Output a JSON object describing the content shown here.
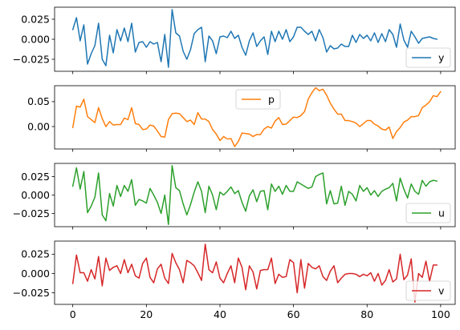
{
  "chart_data": [
    {
      "type": "line",
      "name": "y",
      "color": "#1f77b4",
      "legend_position": "lower-right",
      "ylim": [
        -0.04,
        0.04
      ],
      "yticks": [
        -0.025,
        0.0,
        0.025
      ],
      "ytick_labels": [
        "−0.025",
        "0.000",
        "0.025"
      ],
      "xlim": [
        -4.95,
        103.95
      ],
      "xticks": [
        0,
        20,
        40,
        60,
        80,
        100
      ],
      "xtick_labels": [
        "0",
        "20",
        "40",
        "60",
        "80",
        "100"
      ],
      "show_xtick_labels": false,
      "values": [
        0.012,
        0.027,
        -0.002,
        0.018,
        -0.031,
        -0.018,
        -0.008,
        0.02,
        -0.025,
        -0.033,
        0.005,
        -0.017,
        0.012,
        -0.002,
        0.014,
        -0.003,
        0.02,
        -0.016,
        -0.004,
        -0.003,
        -0.01,
        -0.003,
        -0.006,
        -0.004,
        -0.028,
        0.006,
        -0.035,
        0.037,
        0.008,
        0.004,
        -0.015,
        -0.025,
        -0.013,
        0.007,
        0.012,
        0.015,
        -0.028,
        0.004,
        -0.002,
        -0.018,
        0.003,
        0.004,
        0.002,
        0.01,
        0.001,
        0.005,
        -0.01,
        -0.02,
        -0.002,
        0.008,
        -0.009,
        -0.002,
        0.003,
        -0.019,
        0.01,
        -0.003,
        0.01,
        0.0,
        0.012,
        -0.003,
        0.003,
        0.015,
        0.015,
        0.01,
        0.006,
        0.01,
        -0.002,
        0.012,
        0.002,
        -0.016,
        -0.008,
        -0.012,
        -0.011,
        -0.006,
        -0.009,
        -0.009,
        0.005,
        -0.004,
        0.006,
        0.001,
        0.005,
        -0.002,
        0.008,
        -0.004,
        0.007,
        -0.003,
        0.012,
        0.006,
        -0.01,
        0.019,
        -0.001,
        -0.01,
        0.01,
        0.003,
        -0.005,
        0.001,
        0.002,
        0.003,
        0.001,
        0.0
      ]
    },
    {
      "type": "line",
      "name": "p",
      "color": "#ff7f0e",
      "legend_position": "top-center",
      "ylim": [
        -0.045,
        0.082
      ],
      "yticks": [
        0.0,
        0.05
      ],
      "ytick_labels": [
        "0.00",
        "0.05"
      ],
      "xlim": [
        -4.95,
        103.95
      ],
      "xticks": [
        0,
        20,
        40,
        60,
        80,
        100
      ],
      "xtick_labels": [
        "0",
        "20",
        "40",
        "60",
        "80",
        "100"
      ],
      "show_xtick_labels": false,
      "values": [
        -0.002,
        0.041,
        0.039,
        0.055,
        0.02,
        0.014,
        0.008,
        0.038,
        0.016,
        0.0,
        0.01,
        0.003,
        0.004,
        0.004,
        0.017,
        0.014,
        0.038,
        0.006,
        0.004,
        -0.006,
        -0.005,
        0.003,
        0.001,
        -0.009,
        -0.02,
        -0.021,
        0.014,
        0.026,
        0.027,
        0.026,
        0.018,
        0.01,
        0.013,
        0.004,
        0.028,
        0.015,
        0.015,
        0.01,
        -0.006,
        -0.015,
        -0.028,
        -0.02,
        -0.025,
        -0.024,
        -0.04,
        -0.03,
        -0.013,
        -0.014,
        -0.015,
        -0.02,
        -0.016,
        -0.016,
        -0.005,
        0.0,
        -0.003,
        0.011,
        0.018,
        0.004,
        0.005,
        0.012,
        0.019,
        0.018,
        0.022,
        0.03,
        0.055,
        0.068,
        0.078,
        0.072,
        0.075,
        0.063,
        0.047,
        0.035,
        0.025,
        0.025,
        0.012,
        0.012,
        0.01,
        0.007,
        0.0,
        0.006,
        0.012,
        0.012,
        0.005,
        0.001,
        -0.005,
        -0.007,
        -0.001,
        -0.024,
        -0.01,
        -0.002,
        0.009,
        0.013,
        0.02,
        0.02,
        0.022,
        0.038,
        0.043,
        0.05,
        0.062,
        0.06,
        0.07
      ]
    },
    {
      "type": "line",
      "name": "u",
      "color": "#2ca02c",
      "legend_position": "lower-right",
      "ylim": [
        -0.043,
        0.043
      ],
      "yticks": [
        -0.025,
        0.0,
        0.025
      ],
      "ytick_labels": [
        "−0.025",
        "0.000",
        "0.025"
      ],
      "xlim": [
        -4.95,
        103.95
      ],
      "xticks": [
        0,
        20,
        40,
        60,
        80,
        100
      ],
      "xtick_labels": [
        "0",
        "20",
        "40",
        "60",
        "80",
        "100"
      ],
      "show_xtick_labels": false,
      "values": [
        0.012,
        0.037,
        0.008,
        0.032,
        -0.024,
        -0.015,
        -0.003,
        0.03,
        -0.027,
        -0.035,
        0.002,
        -0.015,
        0.013,
        -0.002,
        0.013,
        0.005,
        0.021,
        -0.014,
        -0.006,
        -0.008,
        -0.011,
        0.009,
        0.0,
        -0.01,
        -0.025,
        0.0,
        -0.04,
        0.04,
        0.01,
        0.006,
        -0.012,
        -0.027,
        -0.013,
        0.004,
        0.018,
        0.005,
        -0.024,
        0.012,
        0.0,
        -0.02,
        0.004,
        0.0,
        0.005,
        0.011,
        0.002,
        0.006,
        -0.01,
        -0.022,
        -0.001,
        0.007,
        -0.009,
        0.005,
        0.006,
        -0.02,
        0.015,
        0.005,
        0.012,
        0.001,
        0.013,
        0.005,
        0.005,
        0.018,
        0.015,
        0.012,
        0.009,
        0.011,
        0.025,
        0.028,
        0.03,
        -0.012,
        0.006,
        -0.012,
        -0.011,
        0.012,
        -0.014,
        0.005,
        0.001,
        -0.008,
        0.013,
        0.005,
        0.01,
        0.0,
        0.006,
        -0.002,
        0.005,
        0.008,
        0.01,
        0.016,
        -0.008,
        0.023,
        0.008,
        -0.004,
        0.015,
        0.005,
        0.001,
        0.02,
        0.012,
        0.018,
        0.02,
        0.019
      ]
    },
    {
      "type": "line",
      "name": "v",
      "color": "#d62728",
      "legend_position": "lower-right",
      "ylim": [
        -0.04,
        0.042
      ],
      "yticks": [
        -0.025,
        0.0,
        0.025
      ],
      "ytick_labels": [
        "−0.025",
        "0.000",
        "0.025"
      ],
      "xlim": [
        -4.95,
        103.95
      ],
      "xticks": [
        0,
        20,
        40,
        60,
        80,
        100
      ],
      "xtick_labels": [
        "0",
        "20",
        "40",
        "60",
        "80",
        "100"
      ],
      "show_xtick_labels": true,
      "values": [
        -0.013,
        0.024,
        0.001,
        0.001,
        -0.01,
        0.005,
        -0.007,
        0.022,
        -0.016,
        0.02,
        0.004,
        0.008,
        0.01,
        0.0,
        0.018,
        0.001,
        0.012,
        -0.003,
        -0.006,
        0.013,
        0.02,
        -0.005,
        -0.012,
        0.006,
        0.012,
        -0.006,
        -0.013,
        0.026,
        0.014,
        0.005,
        -0.012,
        0.017,
        0.014,
        0.01,
        0.001,
        -0.009,
        0.038,
        0.005,
        0.001,
        0.015,
        -0.006,
        -0.012,
        0.0,
        0.01,
        -0.012,
        0.02,
        0.008,
        -0.021,
        0.01,
        0.002,
        -0.02,
        0.004,
        0.005,
        0.005,
        0.02,
        -0.013,
        -0.001,
        -0.005,
        -0.004,
        0.018,
        0.014,
        -0.025,
        0.018,
        -0.019,
        0.013,
        0.008,
        0.006,
        0.01,
        -0.004,
        -0.009,
        0.003,
        0.01,
        -0.012,
        -0.006,
        -0.001,
        0.0,
        0.0,
        -0.001,
        -0.004,
        -0.001,
        -0.003,
        0.001,
        -0.01,
        0.0,
        -0.015,
        -0.009,
        0.005,
        -0.011,
        -0.007,
        0.025,
        -0.008,
        -0.002,
        0.019,
        -0.037,
        0.0,
        -0.005,
        0.016,
        -0.01,
        0.011,
        0.011
      ]
    }
  ]
}
